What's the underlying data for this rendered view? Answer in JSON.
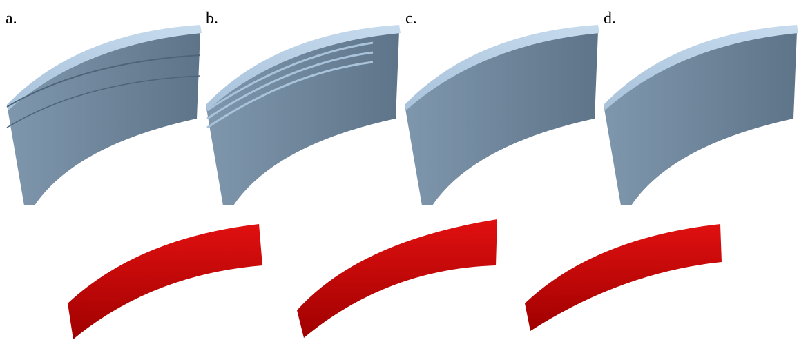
{
  "panels": {
    "labels": [
      "a.",
      "b.",
      "c.",
      "d."
    ]
  }
}
